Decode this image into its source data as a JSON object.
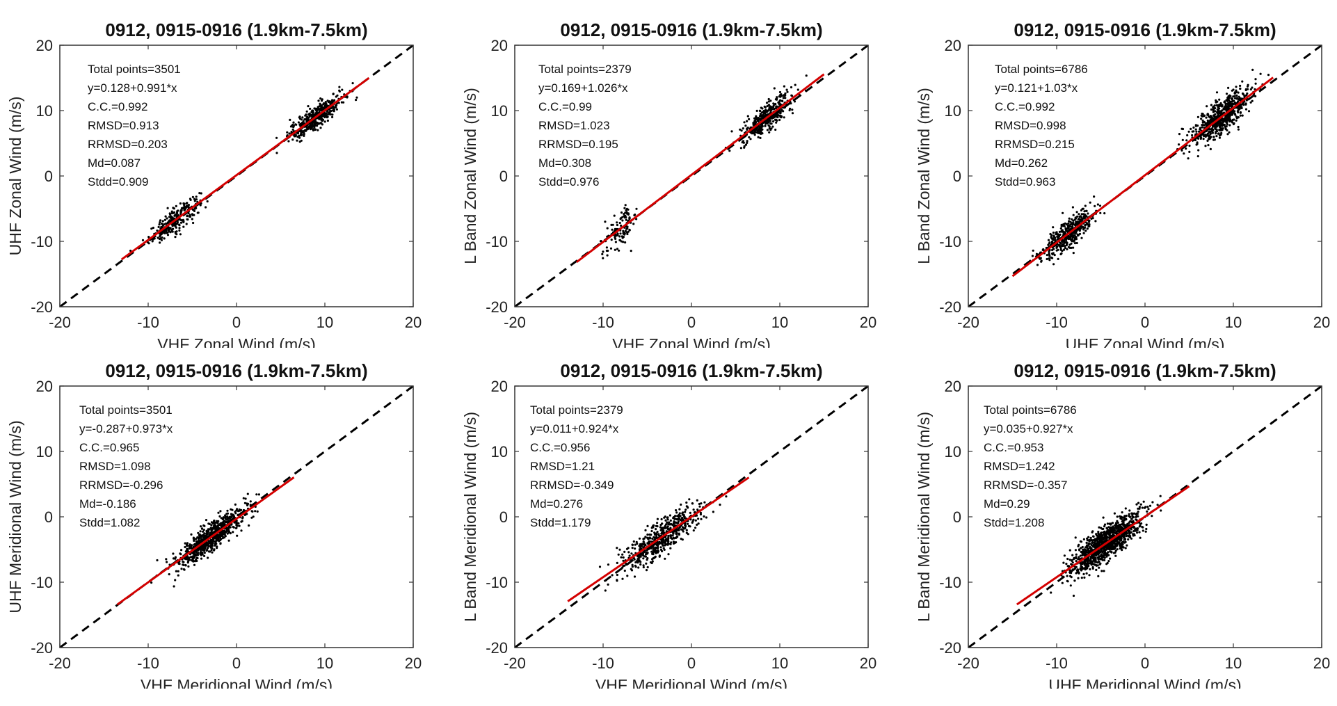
{
  "colors": {
    "points": "#000000",
    "fit": "#d40000",
    "one_to_one": "#000000",
    "frame": "#333333"
  },
  "chart_data": [
    {
      "type": "scatter",
      "title": "0912, 0915-0916 (1.9km-7.5km)",
      "xlabel": "VHF Zonal Wind (m/s)",
      "ylabel": "UHF Zonal Wind (m/s)",
      "xlim": [
        -20,
        20
      ],
      "ylim": [
        -20,
        20
      ],
      "xticks": [
        -20,
        -10,
        0,
        10,
        20
      ],
      "yticks": [
        -20,
        -10,
        0,
        10,
        20
      ],
      "reference_line": "y=x",
      "fit": {
        "intercept": 0.128,
        "slope": 0.991,
        "x_range": [
          -13,
          15
        ]
      },
      "clusters": [
        {
          "count": 260,
          "cx": -7,
          "sx": 2.6,
          "sy": 0.9
        },
        {
          "count": 420,
          "cx": 9,
          "sx": 2.8,
          "sy": 0.9
        }
      ],
      "stats": [
        "Total points=3501",
        "y=0.128+0.991*x",
        "C.C.=0.992",
        "RMSD=0.913",
        "RRMSD=0.203",
        "Md=0.087",
        "Stdd=0.909"
      ]
    },
    {
      "type": "scatter",
      "title": "0912, 0915-0916 (1.9km-7.5km)",
      "xlabel": "VHF Zonal Wind (m/s)",
      "ylabel": "L Band Zonal Wind (m/s)",
      "xlim": [
        -20,
        20
      ],
      "ylim": [
        -20,
        20
      ],
      "xticks": [
        -20,
        -10,
        0,
        10,
        20
      ],
      "yticks": [
        -20,
        -10,
        0,
        10,
        20
      ],
      "reference_line": "y=x",
      "fit": {
        "intercept": 0.169,
        "slope": 1.026,
        "x_range": [
          -13,
          15
        ]
      },
      "clusters": [
        {
          "count": 120,
          "cx": -8,
          "sx": 1.7,
          "sy": 1.3
        },
        {
          "count": 380,
          "cx": 8.5,
          "sx": 2.7,
          "sy": 1.1
        }
      ],
      "stats": [
        "Total points=2379",
        "y=0.169+1.026*x",
        "C.C.=0.99",
        "RMSD=1.023",
        "RRMSD=0.195",
        "Md=0.308",
        "Stdd=0.976"
      ]
    },
    {
      "type": "scatter",
      "title": "0912, 0915-0916 (1.9km-7.5km)",
      "xlabel": "UHF Zonal Wind (m/s)",
      "ylabel": "L Band Zonal Wind (m/s)",
      "xlim": [
        -20,
        20
      ],
      "ylim": [
        -20,
        20
      ],
      "xticks": [
        -20,
        -10,
        0,
        10,
        20
      ],
      "yticks": [
        -20,
        -10,
        0,
        10,
        20
      ],
      "reference_line": "y=x",
      "fit": {
        "intercept": 0.121,
        "slope": 1.03,
        "x_range": [
          -15,
          14.5
        ]
      },
      "clusters": [
        {
          "count": 420,
          "cx": -8.5,
          "sx": 2.8,
          "sy": 1.1
        },
        {
          "count": 620,
          "cx": 8.5,
          "sx": 3.0,
          "sy": 1.3
        }
      ],
      "stats": [
        "Total points=6786",
        "y=0.121+1.03*x",
        "C.C.=0.992",
        "RMSD=0.998",
        "RRMSD=0.215",
        "Md=0.262",
        "Stdd=0.963"
      ]
    },
    {
      "type": "scatter",
      "title": "0912, 0915-0916 (1.9km-7.5km)",
      "xlabel": "VHF Meridional Wind (m/s)",
      "ylabel": "UHF Meridional Wind (m/s)",
      "xlim": [
        -20,
        20
      ],
      "ylim": [
        -20,
        20
      ],
      "xticks": [
        -20,
        -10,
        0,
        10,
        20
      ],
      "yticks": [
        -20,
        -10,
        0,
        10,
        20
      ],
      "reference_line": "y=x",
      "fit": {
        "intercept": -0.287,
        "slope": 0.973,
        "x_range": [
          -13.5,
          6.5
        ]
      },
      "clusters": [
        {
          "count": 700,
          "cx": -3,
          "sx": 3.8,
          "sy": 1.1
        }
      ],
      "stats": [
        "Total points=3501",
        "y=-0.287+0.973*x",
        "C.C.=0.965",
        "RMSD=1.098",
        "RRMSD=-0.296",
        "Md=-0.186",
        "Stdd=1.082"
      ]
    },
    {
      "type": "scatter",
      "title": "0912, 0915-0916 (1.9km-7.5km)",
      "xlabel": "VHF Meridional Wind (m/s)",
      "ylabel": "L Band Meridional Wind (m/s)",
      "xlim": [
        -20,
        20
      ],
      "ylim": [
        -20,
        20
      ],
      "xticks": [
        -20,
        -10,
        0,
        10,
        20
      ],
      "yticks": [
        -20,
        -10,
        0,
        10,
        20
      ],
      "reference_line": "y=x",
      "fit": {
        "intercept": 0.011,
        "slope": 0.924,
        "x_range": [
          -14,
          6.5
        ]
      },
      "clusters": [
        {
          "count": 560,
          "cx": -3.5,
          "sx": 4.0,
          "sy": 1.3
        }
      ],
      "stats": [
        "Total points=2379",
        "y=0.011+0.924*x",
        "C.C.=0.956",
        "RMSD=1.21",
        "RRMSD=-0.349",
        "Md=0.276",
        "Stdd=1.179"
      ]
    },
    {
      "type": "scatter",
      "title": "0912, 0915-0916 (1.9km-7.5km)",
      "xlabel": "UHF Meridional Wind (m/s)",
      "ylabel": "L Band Meridional Wind (m/s)",
      "xlim": [
        -20,
        20
      ],
      "ylim": [
        -20,
        20
      ],
      "xticks": [
        -20,
        -10,
        0,
        10,
        20
      ],
      "yticks": [
        -20,
        -10,
        0,
        10,
        20
      ],
      "reference_line": "y=x",
      "fit": {
        "intercept": 0.035,
        "slope": 0.927,
        "x_range": [
          -14.5,
          5
        ]
      },
      "clusters": [
        {
          "count": 1100,
          "cx": -4.5,
          "sx": 3.6,
          "sy": 1.3
        }
      ],
      "stats": [
        "Total points=6786",
        "y=0.035+0.927*x",
        "C.C.=0.953",
        "RMSD=1.242",
        "RRMSD=-0.357",
        "Md=0.29",
        "Stdd=1.208"
      ]
    }
  ]
}
